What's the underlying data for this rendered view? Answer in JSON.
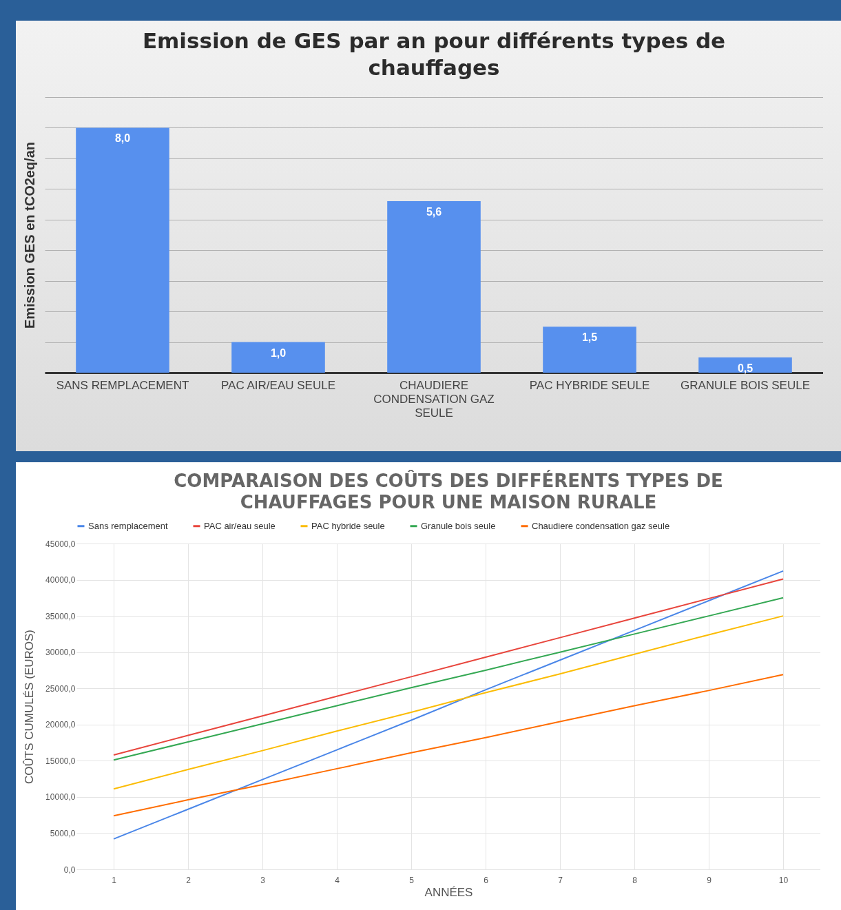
{
  "chart_data": [
    {
      "type": "bar",
      "title": [
        "Emission de GES par an pour différents types de",
        "chauffages"
      ],
      "ylabel": "Emission GES en tCO2eq/an",
      "categories": [
        "SANS REMPLACEMENT",
        "PAC AIR/EAU  SEULE",
        "CHAUDIERE CONDENSATION GAZ SEULE",
        "PAC HYBRIDE SEULE",
        "GRANULE BOIS SEULE"
      ],
      "values": [
        8.0,
        1.0,
        5.6,
        1.5,
        0.5
      ],
      "value_labels": [
        "8,0",
        "1,0",
        "5,6",
        "1,5",
        "0,5"
      ],
      "color": "#5790ee",
      "ylim": [
        0,
        9
      ],
      "yticks": [
        {
          "value": 0,
          "label": null
        },
        {
          "value": 1,
          "label": null
        },
        {
          "value": 2,
          "label": null
        },
        {
          "value": 3,
          "label": null
        },
        {
          "value": 4,
          "label": null
        },
        {
          "value": 5,
          "label": null
        },
        {
          "value": 6,
          "label": null
        },
        {
          "value": 7,
          "label": null
        },
        {
          "value": 8,
          "label": null
        },
        {
          "value": 9,
          "label": null
        }
      ],
      "grid": "y",
      "tick_labels": "x"
    },
    {
      "type": "line",
      "title": [
        "COMPARAISON DES COÛTS DES DIFFÉRENTS TYPES DE",
        "CHAUFFAGES POUR UNE MAISON RURALE"
      ],
      "xlabel": "ANNÉES",
      "ylabel": "COÛTS CUMULÉS  (EUROS)",
      "x": [
        1,
        2,
        3,
        4,
        5,
        6,
        7,
        8,
        9,
        10
      ],
      "series": [
        {
          "name": "Sans remplacement",
          "color": "#4a86e8",
          "values": [
            4200,
            8300,
            12400,
            16500,
            20600,
            24800,
            28900,
            33000,
            37100,
            41200
          ]
        },
        {
          "name": "PAC air/eau seule",
          "color": "#e8453c",
          "values": [
            15800,
            18500,
            21200,
            23900,
            26600,
            29300,
            32000,
            34700,
            37400,
            40100
          ]
        },
        {
          "name": "PAC hybride seule",
          "color": "#fbbc04",
          "values": [
            11100,
            13800,
            16400,
            19100,
            21700,
            24400,
            27000,
            29700,
            32400,
            35000
          ]
        },
        {
          "name": "Granule bois seule",
          "color": "#34a853",
          "values": [
            15100,
            17600,
            20100,
            22600,
            25100,
            27500,
            30000,
            32500,
            35000,
            37500
          ]
        },
        {
          "name": "Chaudiere condensation gaz seule",
          "color": "#ff6d01",
          "values": [
            7400,
            9600,
            11700,
            13900,
            16100,
            18200,
            20400,
            22600,
            24700,
            26900
          ]
        }
      ],
      "xlim": [
        0.5,
        10.5
      ],
      "xticks": [
        1,
        2,
        3,
        4,
        5,
        6,
        7,
        8,
        9,
        10
      ],
      "ylim": [
        0,
        45000
      ],
      "yticks": [
        {
          "value": 0,
          "label": "0,0"
        },
        {
          "value": 5000,
          "label": "5000,0"
        },
        {
          "value": 10000,
          "label": "10000,0"
        },
        {
          "value": 15000,
          "label": "15000,0"
        },
        {
          "value": 20000,
          "label": "20000,0"
        },
        {
          "value": 25000,
          "label": "25000,0"
        },
        {
          "value": 30000,
          "label": "30000,0"
        },
        {
          "value": 35000,
          "label": "35000,0"
        },
        {
          "value": 40000,
          "label": "40000,0"
        },
        {
          "value": 45000,
          "label": "45000,0"
        }
      ],
      "grid": true,
      "legend": "top",
      "marker": "none",
      "line_style": "solid"
    }
  ]
}
